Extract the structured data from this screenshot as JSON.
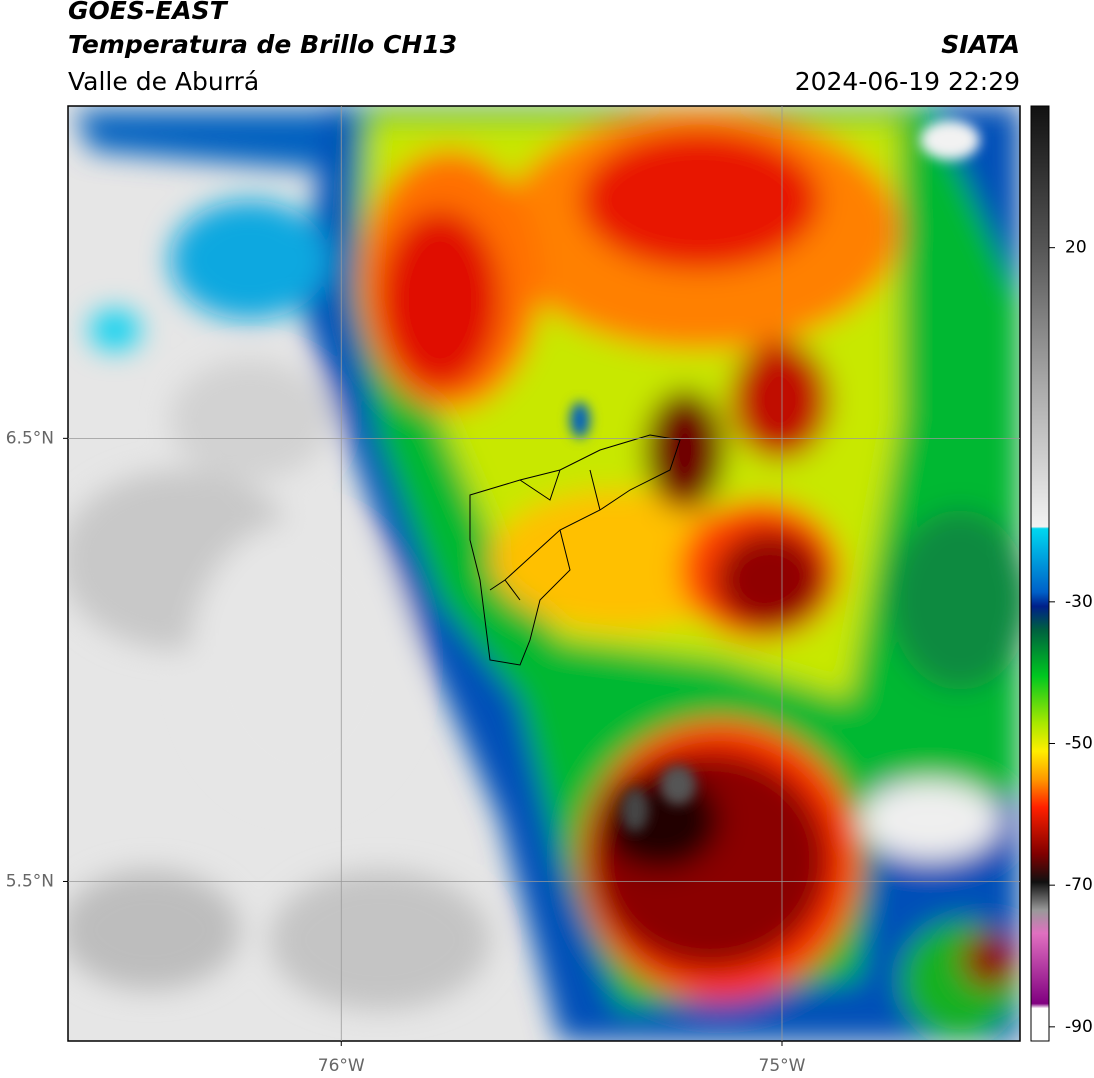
{
  "chart_data": {
    "type": "map",
    "title": "GOES-EAST",
    "subtitle": "Temperatura de Brillo CH13",
    "region": "Valle de Aburrá",
    "source": "SIATA",
    "datetime": "2024-06-19 22:29",
    "xlim": [
      -76.62,
      -74.46
    ],
    "ylim": [
      5.14,
      7.25
    ],
    "xticks": [
      {
        "value": -76,
        "label": "76°W"
      },
      {
        "value": -75,
        "label": "75°W"
      }
    ],
    "yticks": [
      {
        "value": 6.5,
        "label": "6.5°N"
      },
      {
        "value": 5.5,
        "label": "5.5°N"
      }
    ],
    "grid": true,
    "colorbar": {
      "lim": [
        -92,
        40
      ],
      "ticks": [
        20,
        -30,
        -50,
        -70,
        -90
      ]
    }
  }
}
